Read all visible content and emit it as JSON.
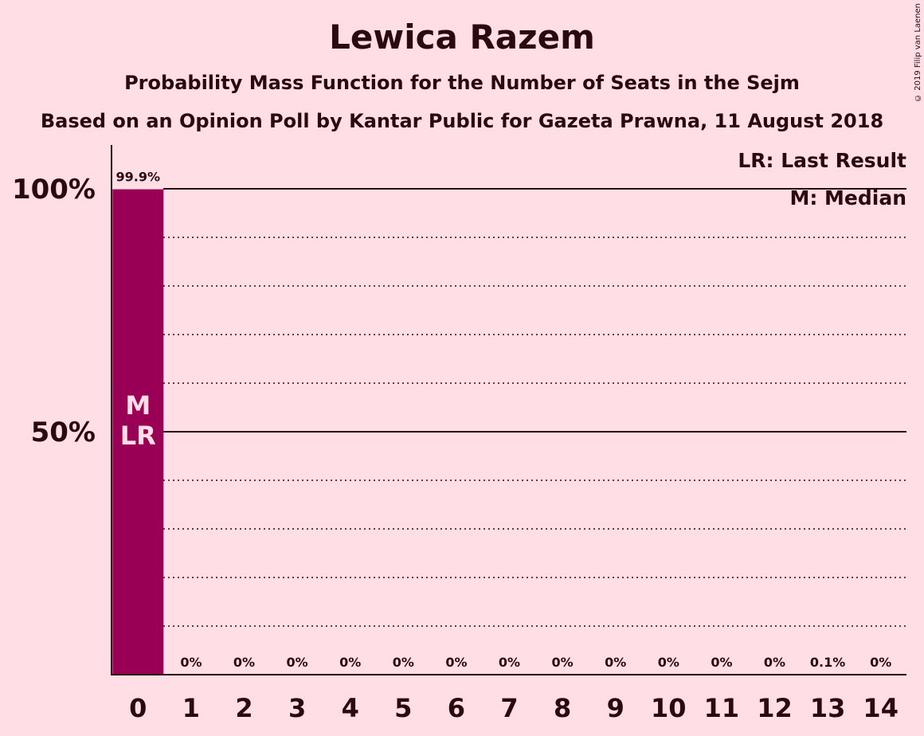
{
  "chart_data": {
    "type": "bar",
    "title": "Lewica Razem",
    "subtitle": "Probability Mass Function for the Number of Seats in the Sejm",
    "subtitle2": "Based on an Opinion Poll by Kantar Public for Gazeta Prawna, 11 August 2018",
    "categories": [
      "0",
      "1",
      "2",
      "3",
      "4",
      "5",
      "6",
      "7",
      "8",
      "9",
      "10",
      "11",
      "12",
      "13",
      "14"
    ],
    "values": [
      99.9,
      0,
      0,
      0,
      0,
      0,
      0,
      0,
      0,
      0,
      0,
      0,
      0,
      0.1,
      0
    ],
    "value_labels": [
      "99.9%",
      "0%",
      "0%",
      "0%",
      "0%",
      "0%",
      "0%",
      "0%",
      "0%",
      "0%",
      "0%",
      "0%",
      "0%",
      "0.1%",
      "0%"
    ],
    "ylim": [
      0,
      100
    ],
    "y_ticks": [
      {
        "value": 50,
        "label": "50%"
      },
      {
        "value": 100,
        "label": "100%"
      }
    ],
    "minor_gridlines": [
      10,
      20,
      30,
      40,
      60,
      70,
      80,
      90
    ],
    "bar_markers": [
      {
        "category": "0",
        "lines": [
          "M",
          "LR"
        ]
      }
    ],
    "legend": [
      "LR: Last Result",
      "M: Median"
    ],
    "legend_position": "top-right",
    "bar_color": "#990055",
    "background_color": "#ffdfe5"
  },
  "copyright": "© 2019 Filip van Laenen"
}
